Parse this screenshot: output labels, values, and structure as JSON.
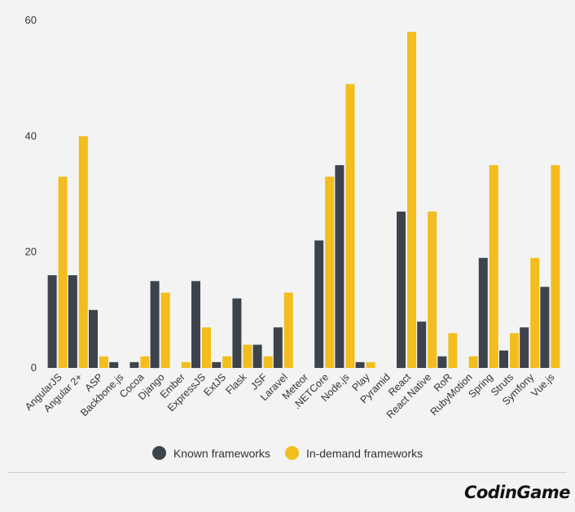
{
  "chart_data": {
    "type": "bar",
    "title": "",
    "xlabel": "",
    "ylabel": "",
    "ylim": [
      0,
      60
    ],
    "yticks": [
      0,
      20,
      40,
      60
    ],
    "grid": false,
    "legend_position": "bottom",
    "categories": [
      "AngularJS",
      "Angular 2+",
      "ASP",
      "Backbone.js",
      "Cocoa",
      "Django",
      "Ember",
      "ExpressJS",
      "ExtJS",
      "Flask",
      "JSF",
      "Laravel",
      "Meteor",
      ".NETCore",
      "Node.js",
      "Play",
      "Pyramid",
      "React",
      "React Native",
      "RoR",
      "RubyMotion",
      "Spring",
      "Struts",
      "Symfony",
      "Vue.js"
    ],
    "series": [
      {
        "name": "Known frameworks",
        "color": "#3d434d",
        "values": [
          16,
          16,
          10,
          1,
          1,
          15,
          0,
          15,
          1,
          12,
          4,
          7,
          0,
          22,
          35,
          1,
          0,
          27,
          8,
          2,
          0,
          19,
          3,
          7,
          14
        ]
      },
      {
        "name": "In-demand frameworks",
        "color": "#f2bd1d",
        "values": [
          33,
          40,
          2,
          0,
          2,
          13,
          1,
          7,
          2,
          4,
          2,
          13,
          0,
          33,
          49,
          1,
          0,
          58,
          27,
          6,
          2,
          35,
          6,
          19,
          35
        ]
      }
    ]
  },
  "legend": {
    "known_label": "Known frameworks",
    "demand_label": "In-demand frameworks"
  },
  "brand": {
    "logo_text": "CodinGame"
  }
}
